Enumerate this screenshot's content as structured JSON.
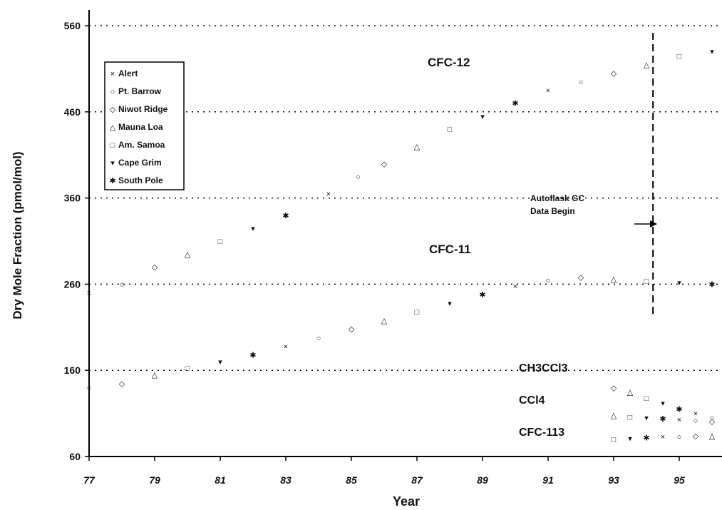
{
  "chart_data": {
    "type": "scatter",
    "xlabel": "Year",
    "ylabel": "Dry Mole Fraction (pmol/mol)",
    "xlim": [
      77,
      96
    ],
    "ylim": [
      60,
      560
    ],
    "x_ticks": [
      "77",
      "79",
      "81",
      "83",
      "85",
      "87",
      "89",
      "91",
      "93",
      "95"
    ],
    "y_ticks": [
      "60",
      "160",
      "260",
      "360",
      "460",
      "560"
    ],
    "grid": "dotted horizontal",
    "legend": {
      "placement": "top-left",
      "entries": [
        {
          "label": "Alert",
          "marker": "×"
        },
        {
          "label": "Pt. Barrow",
          "marker": "○"
        },
        {
          "label": "Niwot Ridge",
          "marker": "◇"
        },
        {
          "label": "Mauna Loa",
          "marker": "△"
        },
        {
          "label": "Am. Samoa",
          "marker": "□"
        },
        {
          "label": "Cape Grim",
          "marker": "▾"
        },
        {
          "label": "South Pole",
          "marker": "✱"
        }
      ]
    },
    "annotations": {
      "cfc12": "CFC-12",
      "cfc11": "CFC-11",
      "ch3ccl3": "CH3CCl3",
      "ccl4": "CCl4",
      "cfc113": "CFC-113",
      "autoflask_line1": "Autoflask GC",
      "autoflask_line2": "Data Begin"
    },
    "autoflask_year": 94.2,
    "series": [
      {
        "name": "CFC-12",
        "x": [
          77.0,
          78.0,
          79.0,
          80.0,
          81.0,
          82.0,
          83.0,
          84.3,
          85.2,
          86.0,
          87.0,
          88.0,
          89.0,
          90.0,
          91.0,
          92.0,
          93.0,
          94.0,
          95.0,
          96.0
        ],
        "y": [
          250,
          260,
          280,
          295,
          310,
          325,
          340,
          365,
          385,
          400,
          420,
          440,
          455,
          470,
          485,
          495,
          505,
          515,
          525,
          530
        ]
      },
      {
        "name": "CFC-11",
        "x": [
          77.0,
          78.0,
          79.0,
          80.0,
          81.0,
          82.0,
          83.0,
          84.0,
          85.0,
          86.0,
          87.0,
          88.0,
          89.0,
          90.0,
          91.0,
          92.0,
          93.0,
          94.0,
          95.0,
          96.0
        ],
        "y": [
          140,
          145,
          155,
          163,
          170,
          178,
          188,
          198,
          208,
          218,
          228,
          238,
          248,
          258,
          265,
          268,
          266,
          264,
          262,
          260
        ]
      },
      {
        "name": "CH3CCl3",
        "x": [
          93.0,
          93.5,
          94.0,
          94.5,
          95.0,
          95.5,
          96.0
        ],
        "y": [
          140,
          135,
          128,
          122,
          115,
          110,
          105
        ]
      },
      {
        "name": "CCl4",
        "x": [
          93.0,
          93.5,
          94.0,
          94.5,
          95.0,
          95.5,
          96.0
        ],
        "y": [
          108,
          106,
          105,
          104,
          103,
          102,
          101
        ]
      },
      {
        "name": "CFC-113",
        "x": [
          93.0,
          93.5,
          94.0,
          94.5,
          95.0,
          95.5,
          96.0
        ],
        "y": [
          80,
          81,
          82,
          83,
          83,
          84,
          84
        ]
      }
    ]
  }
}
